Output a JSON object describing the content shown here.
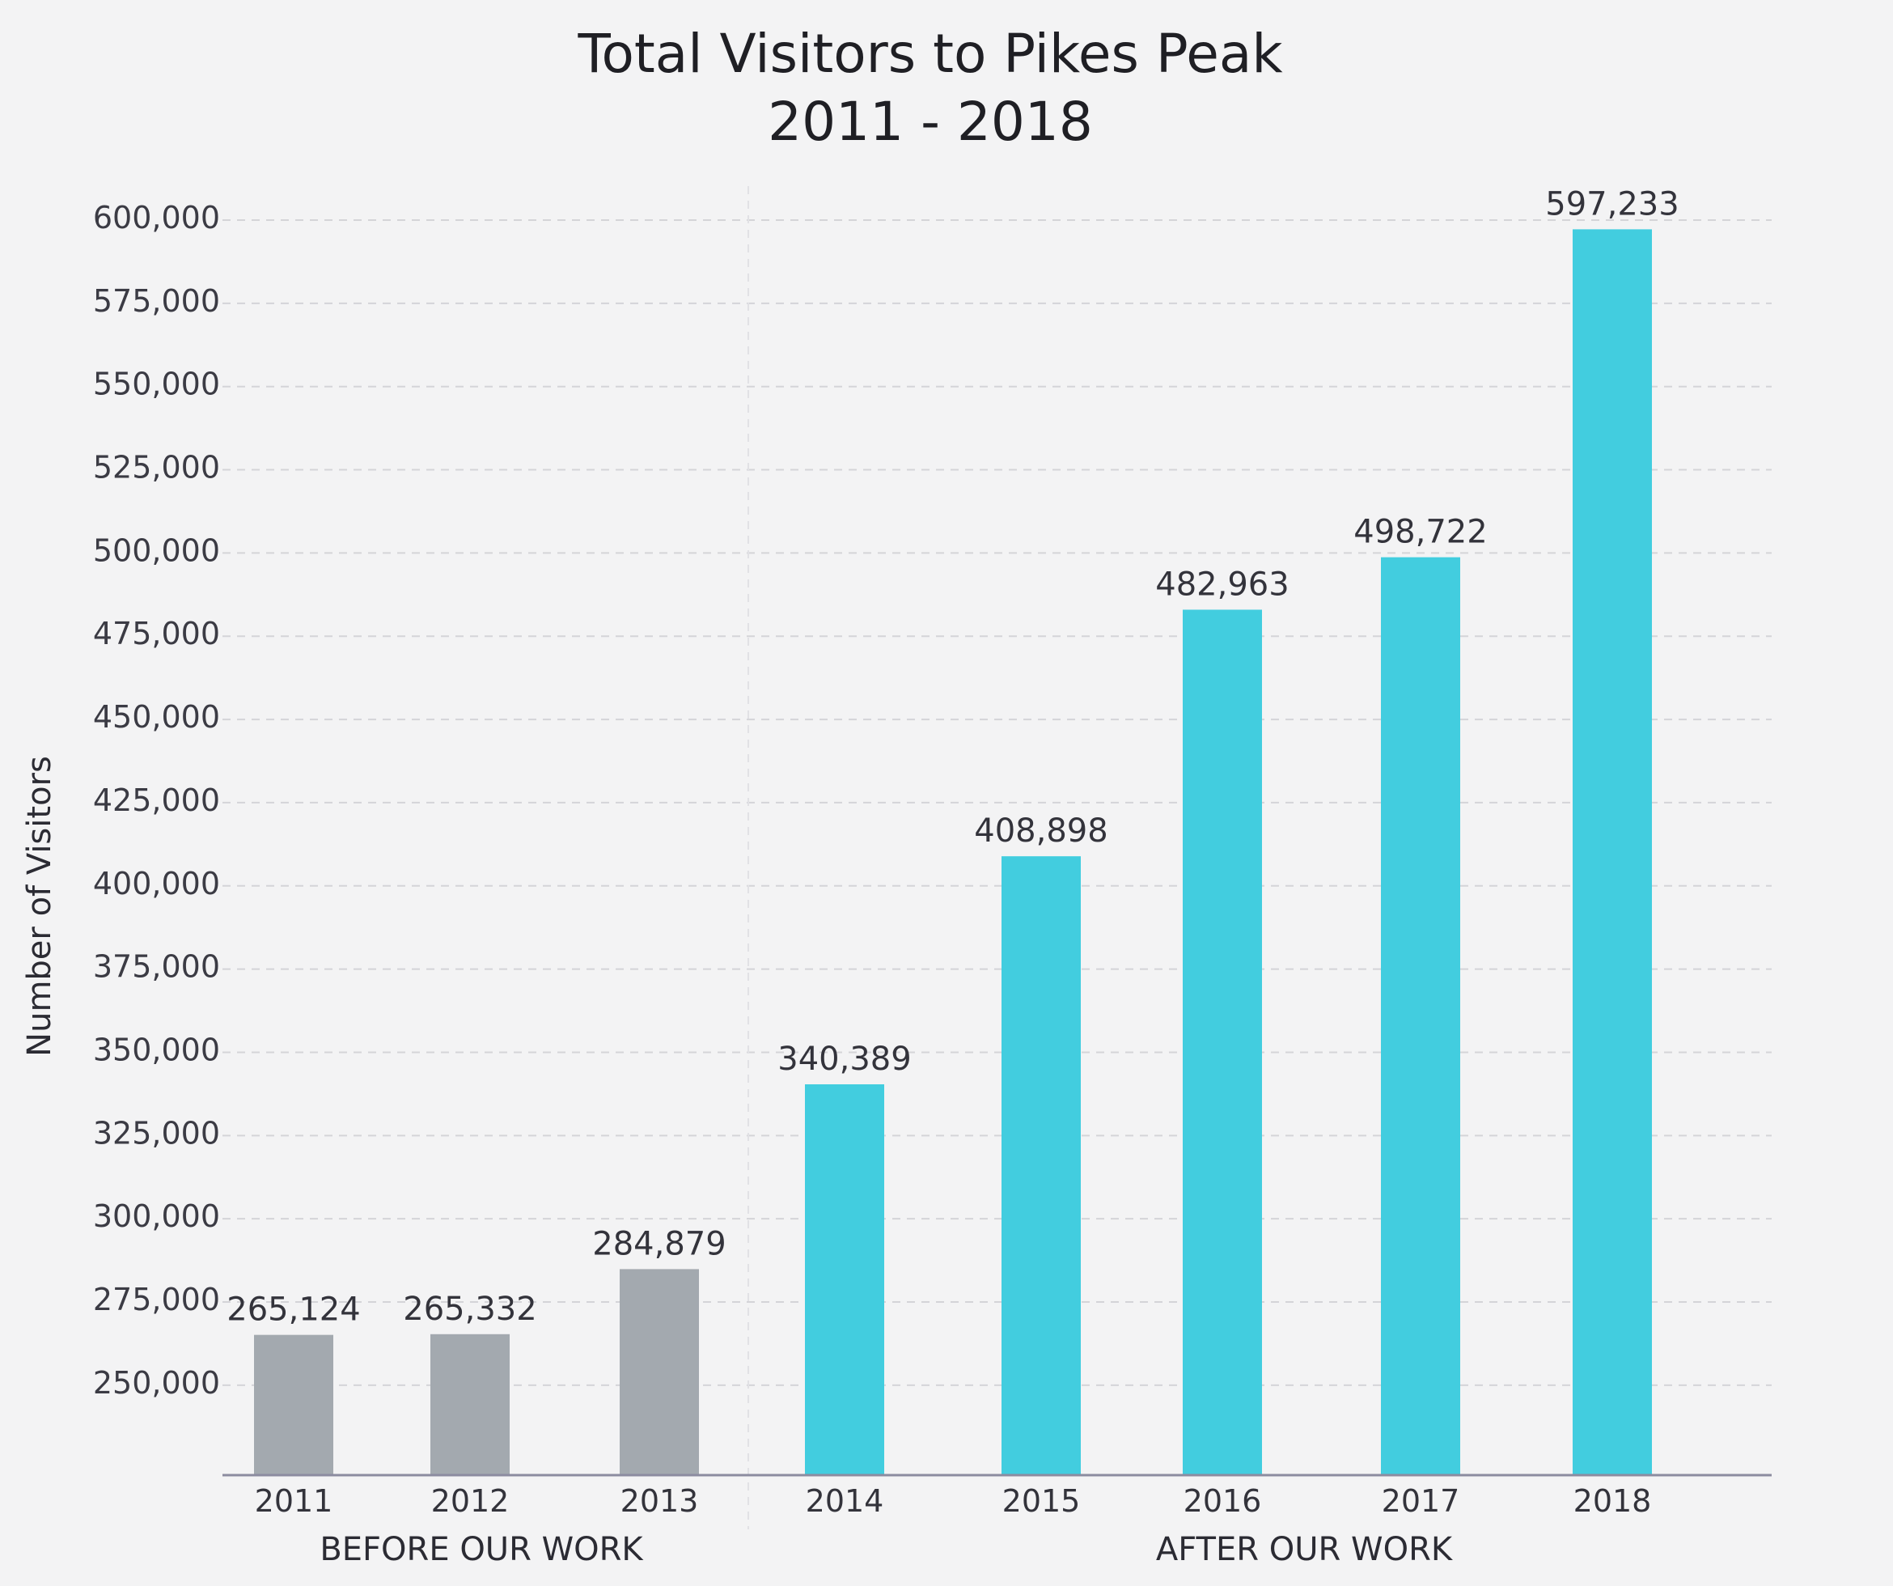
{
  "chart_data": {
    "type": "bar",
    "title": "Total Visitors to Pikes Peak",
    "subtitle": "2011 - 2018",
    "ylabel": "Number of Visitors",
    "xlabel": "",
    "categories": [
      "2011",
      "2012",
      "2013",
      "2014",
      "2015",
      "2016",
      "2017",
      "2018"
    ],
    "values": [
      265124,
      265332,
      284879,
      340389,
      408898,
      482963,
      498722,
      597233
    ],
    "data_labels": [
      "265,124",
      "265,332",
      "284,879",
      "340,389",
      "408,898",
      "482,963",
      "498,722",
      "597,233"
    ],
    "groups": [
      {
        "label": "BEFORE OUR WORK",
        "categories": [
          "2011",
          "2012",
          "2013"
        ],
        "color": "#a3a9af"
      },
      {
        "label": "AFTER OUR WORK",
        "categories": [
          "2014",
          "2015",
          "2016",
          "2017",
          "2018"
        ],
        "color": "#42cddf"
      }
    ],
    "yticks": [
      250000,
      275000,
      300000,
      325000,
      350000,
      375000,
      400000,
      425000,
      450000,
      475000,
      500000,
      525000,
      550000,
      575000,
      600000
    ],
    "ytick_labels": [
      "250,000",
      "275,000",
      "300,000",
      "325,000",
      "350,000",
      "375,000",
      "400,000",
      "425,000",
      "450,000",
      "475,000",
      "500,000",
      "525,000",
      "550,000",
      "575,000",
      "600,000"
    ],
    "ylim": [
      222500,
      600000
    ],
    "grid": true,
    "legend": "none"
  }
}
